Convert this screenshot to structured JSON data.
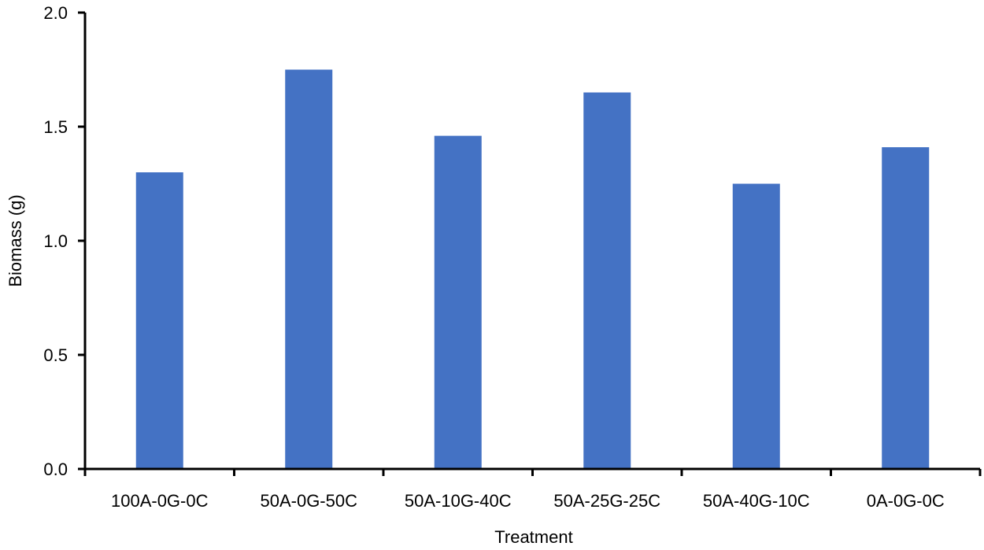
{
  "chart_data": {
    "type": "bar",
    "title": "",
    "xlabel": "Treatment",
    "ylabel": "Biomass (g)",
    "categories": [
      "100A-0G-0C",
      "50A-0G-50C",
      "50A-10G-40C",
      "50A-25G-25C",
      "50A-40G-10C",
      "0A-0G-0C"
    ],
    "values": [
      1.3,
      1.75,
      1.46,
      1.65,
      1.25,
      1.41
    ],
    "ylim": [
      0,
      2.0
    ],
    "yticks": [
      "0.0",
      "0.5",
      "1.0",
      "1.5",
      "2.0"
    ],
    "grid": false,
    "bar_color": "#4472C4",
    "axis_color": "#000000"
  }
}
